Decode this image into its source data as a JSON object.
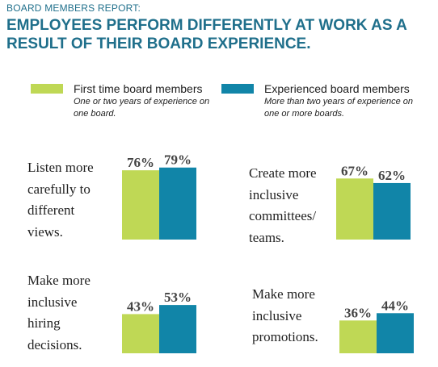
{
  "header": {
    "kicker": "BOARD MEMBERS REPORT:",
    "title": "EMPLOYEES PERFORM DIFFERENTLY AT WORK AS A RESULT OF THEIR BOARD EXPERIENCE."
  },
  "legend": [
    {
      "name": "First time board members",
      "description": "One or two years of experience on one board.",
      "color": "#bfd855"
    },
    {
      "name": "Experienced board members",
      "description": "More than two years of experience on one or more boards.",
      "color": "#1185a8"
    }
  ],
  "chart_data": {
    "type": "bar",
    "unit": "%",
    "series": [
      {
        "name": "First time board members",
        "color": "#bfd855"
      },
      {
        "name": "Experienced board members",
        "color": "#1185a8"
      }
    ],
    "panels": [
      {
        "category": "Listen more\ncarefully to\ndifferent\nviews.",
        "values": [
          76,
          79
        ],
        "labels": [
          "76%",
          "79%"
        ]
      },
      {
        "category": "Create more\ninclusive\ncommittees/\nteams.",
        "values": [
          67,
          62
        ],
        "labels": [
          "67%",
          "62%"
        ]
      },
      {
        "category": "Make more\ninclusive\nhiring\ndecisions.",
        "values": [
          43,
          53
        ],
        "labels": [
          "43%",
          "53%"
        ]
      },
      {
        "category": "Make more\ninclusive\npromotions.",
        "values": [
          36,
          44
        ],
        "labels": [
          "36%",
          "44%"
        ]
      }
    ]
  }
}
